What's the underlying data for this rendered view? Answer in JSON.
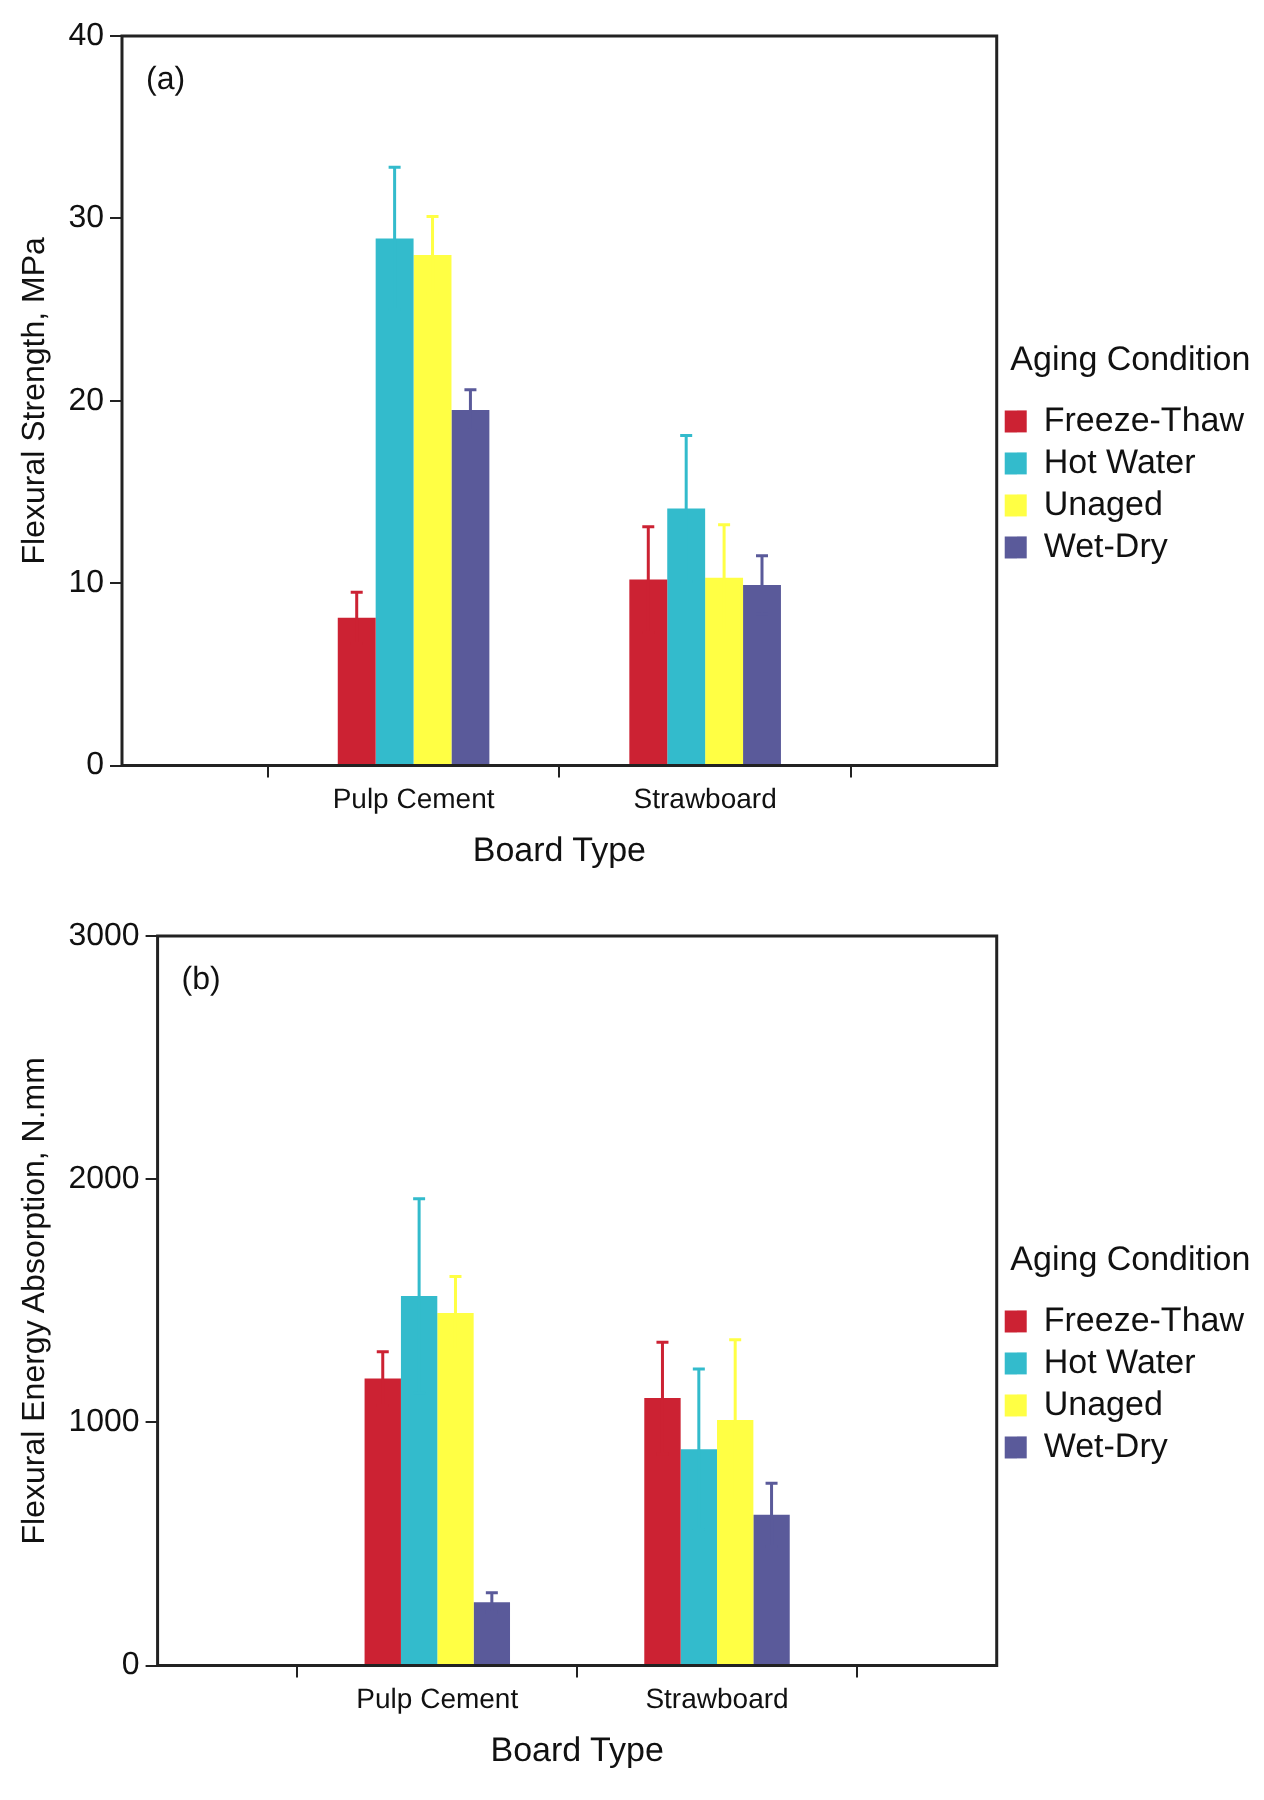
{
  "chart_data": [
    {
      "type": "bar",
      "annotations": [
        "(a)"
      ],
      "xlabel": "Board Type",
      "ylabel": "Flexural Strength, MPa",
      "legend_title": "Aging Condition",
      "legend": "right",
      "grid": false,
      "categories": [
        "Pulp Cement",
        "Strawboard"
      ],
      "ylim": [
        0,
        40
      ],
      "yticks": [
        0,
        10,
        20,
        30,
        40
      ],
      "series": [
        {
          "name": "Freeze-Thaw",
          "color": "#cc2233",
          "values": [
            8.1,
            10.2
          ],
          "errors": [
            1.4,
            2.9
          ]
        },
        {
          "name": "Hot Water",
          "color": "#33bbcc",
          "values": [
            28.9,
            14.1
          ],
          "errors": [
            3.9,
            4.0
          ]
        },
        {
          "name": "Unaged",
          "color": "#ffff44",
          "values": [
            28.0,
            10.3
          ],
          "errors": [
            2.1,
            2.9
          ]
        },
        {
          "name": "Wet-Dry",
          "color": "#5a5a9a",
          "values": [
            19.5,
            9.9
          ],
          "errors": [
            1.1,
            1.6
          ]
        }
      ]
    },
    {
      "type": "bar",
      "annotations": [
        "(b)"
      ],
      "xlabel": "Board Type",
      "ylabel": "Flexural Energy Absorption, N.mm",
      "legend_title": "Aging Condition",
      "legend": "right",
      "grid": false,
      "categories": [
        "Pulp Cement",
        "Strawboard"
      ],
      "ylim": [
        0,
        3000
      ],
      "yticks": [
        0,
        1000,
        2000,
        3000
      ],
      "series": [
        {
          "name": "Freeze-Thaw",
          "color": "#cc2233",
          "values": [
            1180,
            1100
          ],
          "errors": [
            110,
            230
          ]
        },
        {
          "name": "Hot Water",
          "color": "#33bbcc",
          "values": [
            1520,
            890
          ],
          "errors": [
            400,
            330
          ]
        },
        {
          "name": "Unaged",
          "color": "#ffff44",
          "values": [
            1450,
            1010
          ],
          "errors": [
            150,
            330
          ]
        },
        {
          "name": "Wet-Dry",
          "color": "#5a5a9a",
          "values": [
            260,
            620
          ],
          "errors": [
            40,
            130
          ]
        }
      ]
    }
  ]
}
